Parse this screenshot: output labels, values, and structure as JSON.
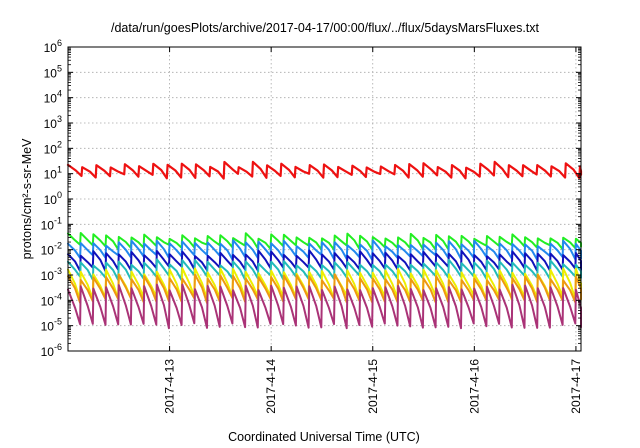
{
  "chart_data": {
    "type": "line",
    "title": "/data/run/goesPlots/archive/2017-04-17/00:00/flux/../flux/5daysMarsFluxes.txt",
    "xlabel": "Coordinated Universal Time (UTC)",
    "ylabel": "protons/cm²-s-sr-MeV",
    "x_range_days": [
      0,
      5.05
    ],
    "x_ticks": [
      {
        "label": "2017-4-13",
        "day": 1
      },
      {
        "label": "2017-4-14",
        "day": 2
      },
      {
        "label": "2017-4-15",
        "day": 3
      },
      {
        "label": "2017-4-16",
        "day": 4
      },
      {
        "label": "2017-4-17",
        "day": 5
      }
    ],
    "y_scale": "log",
    "y_range_exp": [
      -6,
      6
    ],
    "y_ticks": [
      "-6",
      "-5",
      "-4",
      "-3",
      "-2",
      "-1",
      "0",
      "1",
      "2",
      "3",
      "4",
      "5",
      "6"
    ],
    "grid": true,
    "series": [
      {
        "color": "#ee1111",
        "width": 2.2,
        "sawtooth": {
          "peak": 1.35,
          "trough": 0.9,
          "period": 0.14,
          "width": 0.12
        }
      },
      {
        "color": "#22ee22",
        "width": 2,
        "sawtooth": {
          "peak": -1.45,
          "trough": -1.9,
          "period": 0.125,
          "width": 0.12
        }
      },
      {
        "color": "#2288ee",
        "width": 2,
        "sawtooth": {
          "peak": -1.75,
          "trough": -2.3,
          "period": 0.125,
          "width": 0.12
        }
      },
      {
        "color": "#1111bb",
        "width": 2,
        "sawtooth": {
          "peak": -2.15,
          "trough": -2.75,
          "period": 0.125,
          "width": 0.12
        }
      },
      {
        "color": "#22bbbb",
        "width": 2,
        "sawtooth": {
          "peak": -2.5,
          "trough": -3.1,
          "period": 0.125,
          "width": 0.12
        }
      },
      {
        "color": "#eeee00",
        "width": 2,
        "sawtooth": {
          "peak": -2.85,
          "trough": -3.9,
          "period": 0.125,
          "width": 0.12
        }
      },
      {
        "color": "#ee9911",
        "width": 2,
        "sawtooth": {
          "peak": -3.1,
          "trough": -4.0,
          "period": 0.125,
          "width": 0.12
        }
      },
      {
        "color": "#aa3377",
        "width": 2,
        "sawtooth": {
          "peak": -3.5,
          "trough": -5.0,
          "period": 0.125,
          "width": 0.12
        }
      }
    ]
  }
}
